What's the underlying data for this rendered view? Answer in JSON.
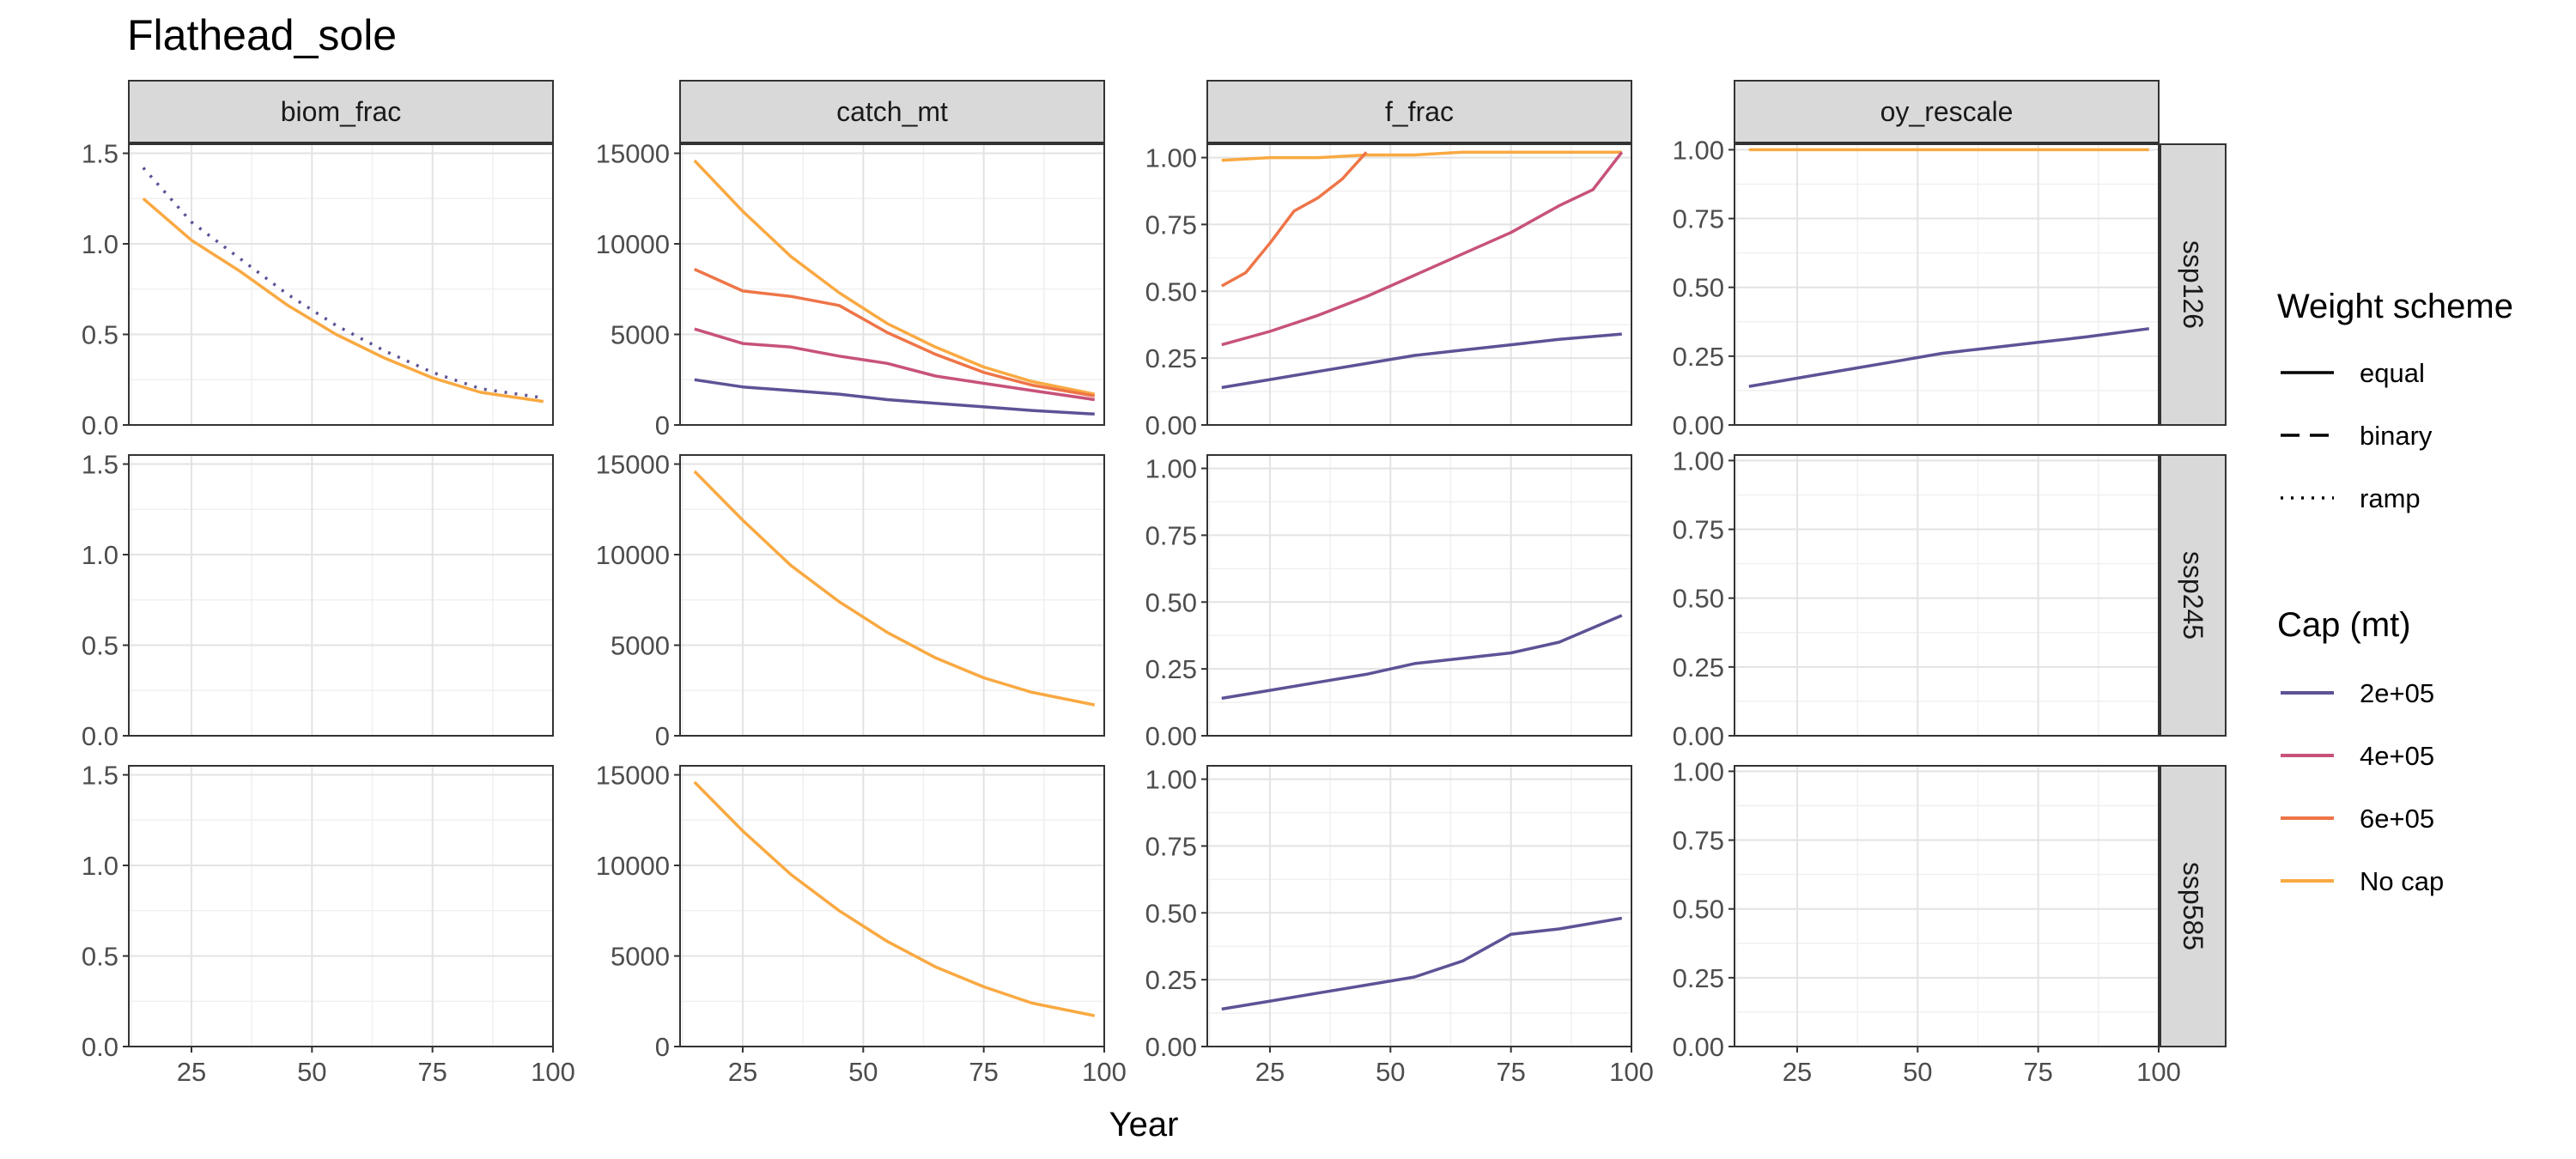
{
  "chart_data": {
    "type": "line",
    "title": "Flathead_sole",
    "xlabel": "Year",
    "ylabel": "",
    "x_ticks": [
      25,
      50,
      75,
      100
    ],
    "xlim": [
      12,
      100
    ],
    "facet_columns": [
      "biom_frac",
      "catch_mt",
      "f_frac",
      "oy_rescale"
    ],
    "facet_rows": [
      "ssp126",
      "ssp245",
      "ssp585"
    ],
    "y_axes": {
      "biom_frac": {
        "ylim": [
          0,
          1.55
        ],
        "ticks": [
          0.0,
          0.5,
          1.0,
          1.5
        ],
        "tick_labels": [
          "0.0",
          "0.5",
          "1.0",
          "1.5"
        ]
      },
      "catch_mt": {
        "ylim": [
          0,
          15500
        ],
        "ticks": [
          0,
          5000,
          10000,
          15000
        ],
        "tick_labels": [
          "0",
          "5000",
          "10000",
          "15000"
        ]
      },
      "f_frac": {
        "ylim": [
          0,
          1.05
        ],
        "ticks": [
          0.0,
          0.25,
          0.5,
          0.75,
          1.0
        ],
        "tick_labels": [
          "0.00",
          "0.25",
          "0.50",
          "0.75",
          "1.00"
        ]
      },
      "oy_rescale": {
        "ylim": [
          0,
          1.02
        ],
        "ticks": [
          0.0,
          0.25,
          0.5,
          0.75,
          1.0
        ],
        "tick_labels": [
          "0.00",
          "0.25",
          "0.50",
          "0.75",
          "1.00"
        ]
      }
    },
    "grid": true,
    "legend_position": "right",
    "legend": {
      "weight_title": "Weight scheme",
      "weight_items": [
        {
          "label": "equal",
          "dash": "solid"
        },
        {
          "label": "binary",
          "dash": "dashed"
        },
        {
          "label": "ramp",
          "dash": "dotted"
        }
      ],
      "cap_title": "Cap (mt)",
      "cap_items": [
        {
          "label": "2e+05",
          "color": "#5E5296"
        },
        {
          "label": "4e+05",
          "color": "#C7527A"
        },
        {
          "label": "6e+05",
          "color": "#EE7548"
        },
        {
          "label": "No cap",
          "color": "#F9A942"
        }
      ]
    },
    "series": [
      {
        "row": "ssp126",
        "panel": "biom_frac",
        "cap": "No cap",
        "weight": "equal",
        "x": [
          15,
          25,
          35,
          45,
          55,
          65,
          75,
          85,
          98
        ],
        "y": [
          1.25,
          1.02,
          0.85,
          0.66,
          0.5,
          0.37,
          0.26,
          0.18,
          0.13
        ]
      },
      {
        "row": "ssp126",
        "panel": "biom_frac",
        "cap": "2e+05",
        "weight": "ramp",
        "x": [
          15,
          25,
          35,
          45,
          55,
          65,
          75,
          85,
          98
        ],
        "y": [
          1.42,
          1.12,
          0.92,
          0.72,
          0.55,
          0.41,
          0.29,
          0.2,
          0.15
        ]
      },
      {
        "row": "ssp126",
        "panel": "catch_mt",
        "cap": "No cap",
        "weight": "equal",
        "x": [
          15,
          25,
          35,
          45,
          55,
          65,
          75,
          85,
          98
        ],
        "y": [
          14600,
          11800,
          9300,
          7300,
          5600,
          4300,
          3200,
          2400,
          1700
        ]
      },
      {
        "row": "ssp126",
        "panel": "catch_mt",
        "cap": "6e+05",
        "weight": "equal",
        "x": [
          15,
          25,
          35,
          45,
          55,
          65,
          75,
          85,
          98
        ],
        "y": [
          8600,
          7400,
          7100,
          6600,
          5100,
          3900,
          2900,
          2200,
          1600
        ]
      },
      {
        "row": "ssp126",
        "panel": "catch_mt",
        "cap": "4e+05",
        "weight": "equal",
        "x": [
          15,
          25,
          35,
          45,
          55,
          65,
          75,
          85,
          98
        ],
        "y": [
          5300,
          4500,
          4300,
          3800,
          3400,
          2700,
          2300,
          1900,
          1400
        ]
      },
      {
        "row": "ssp126",
        "panel": "catch_mt",
        "cap": "2e+05",
        "weight": "equal",
        "x": [
          15,
          25,
          35,
          45,
          55,
          65,
          75,
          85,
          98
        ],
        "y": [
          2500,
          2100,
          1900,
          1700,
          1400,
          1200,
          1000,
          800,
          600
        ]
      },
      {
        "row": "ssp126",
        "panel": "f_frac",
        "cap": "No cap",
        "weight": "equal",
        "x": [
          15,
          25,
          35,
          45,
          55,
          65,
          75,
          85,
          98
        ],
        "y": [
          0.99,
          1.0,
          1.0,
          1.01,
          1.01,
          1.02,
          1.02,
          1.02,
          1.02
        ]
      },
      {
        "row": "ssp126",
        "panel": "f_frac",
        "cap": "6e+05",
        "weight": "equal",
        "x": [
          15,
          20,
          25,
          30,
          35,
          40,
          45
        ],
        "y": [
          0.52,
          0.57,
          0.68,
          0.8,
          0.85,
          0.92,
          1.02
        ]
      },
      {
        "row": "ssp126",
        "panel": "f_frac",
        "cap": "4e+05",
        "weight": "equal",
        "x": [
          15,
          25,
          35,
          45,
          55,
          65,
          75,
          85,
          92,
          98
        ],
        "y": [
          0.3,
          0.35,
          0.41,
          0.48,
          0.56,
          0.64,
          0.72,
          0.82,
          0.88,
          1.02
        ]
      },
      {
        "row": "ssp126",
        "panel": "f_frac",
        "cap": "2e+05",
        "weight": "equal",
        "x": [
          15,
          25,
          35,
          45,
          55,
          65,
          75,
          85,
          98
        ],
        "y": [
          0.14,
          0.17,
          0.2,
          0.23,
          0.26,
          0.28,
          0.3,
          0.32,
          0.34
        ]
      },
      {
        "row": "ssp126",
        "panel": "oy_rescale",
        "cap": "No cap",
        "weight": "equal",
        "x": [
          15,
          98
        ],
        "y": [
          1.0,
          1.0
        ]
      },
      {
        "row": "ssp126",
        "panel": "oy_rescale",
        "cap": "2e+05",
        "weight": "equal",
        "x": [
          15,
          25,
          35,
          45,
          55,
          65,
          75,
          85,
          98
        ],
        "y": [
          0.14,
          0.17,
          0.2,
          0.23,
          0.26,
          0.28,
          0.3,
          0.32,
          0.35
        ]
      },
      {
        "row": "ssp245",
        "panel": "catch_mt",
        "cap": "No cap",
        "weight": "equal",
        "x": [
          15,
          25,
          35,
          45,
          55,
          65,
          75,
          85,
          98
        ],
        "y": [
          14600,
          11900,
          9400,
          7400,
          5700,
          4300,
          3200,
          2400,
          1700
        ]
      },
      {
        "row": "ssp245",
        "panel": "f_frac",
        "cap": "2e+05",
        "weight": "equal",
        "x": [
          15,
          25,
          35,
          45,
          55,
          65,
          75,
          85,
          98
        ],
        "y": [
          0.14,
          0.17,
          0.2,
          0.23,
          0.27,
          0.29,
          0.31,
          0.35,
          0.45
        ]
      },
      {
        "row": "ssp585",
        "panel": "catch_mt",
        "cap": "No cap",
        "weight": "equal",
        "x": [
          15,
          25,
          35,
          45,
          55,
          65,
          75,
          85,
          98
        ],
        "y": [
          14600,
          11900,
          9500,
          7500,
          5800,
          4400,
          3300,
          2400,
          1700
        ]
      },
      {
        "row": "ssp585",
        "panel": "f_frac",
        "cap": "2e+05",
        "weight": "equal",
        "x": [
          15,
          25,
          35,
          45,
          55,
          65,
          75,
          85,
          98
        ],
        "y": [
          0.14,
          0.17,
          0.2,
          0.23,
          0.26,
          0.32,
          0.42,
          0.44,
          0.48
        ]
      }
    ]
  }
}
